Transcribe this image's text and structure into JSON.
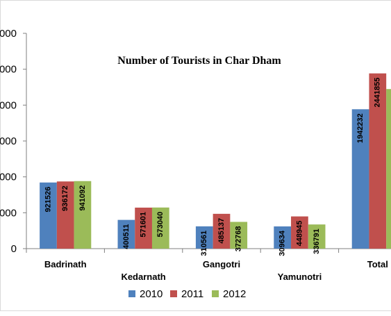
{
  "colors": {
    "axis": "#7f7f7f"
  },
  "chart_data": {
    "type": "bar",
    "title": "Number of Tourists in Char Dham",
    "categories": [
      "Badrinath",
      "Kedarnath",
      "Gangotri",
      "Yamunotri",
      "Total"
    ],
    "ylim": [
      0,
      3000000
    ],
    "y_tick_values": [
      0,
      500000,
      1000000,
      1500000,
      2000000,
      2500000,
      3000000
    ],
    "y_tick_labels": [
      "0",
      "000",
      "000",
      "000",
      "000",
      "000",
      "000"
    ],
    "series": [
      {
        "name": "2010",
        "color": "#4f81bd",
        "values": [
          921526,
          400511,
          310561,
          309634,
          1942232
        ],
        "labels": [
          "921526",
          "400511",
          "310561",
          "309634",
          "1942232"
        ]
      },
      {
        "name": "2011",
        "color": "#c0504d",
        "values": [
          936172,
          571601,
          485137,
          448945,
          2441855
        ],
        "labels": [
          "936172",
          "571601",
          "485137",
          "448945",
          "2441855"
        ]
      },
      {
        "name": "2012",
        "color": "#9bbb59",
        "values": [
          941092,
          573040,
          372768,
          336791,
          2223691
        ],
        "labels": [
          "941092",
          "573040",
          "372768",
          "336791",
          ""
        ]
      }
    ],
    "grid": false,
    "legend": "bottom"
  }
}
